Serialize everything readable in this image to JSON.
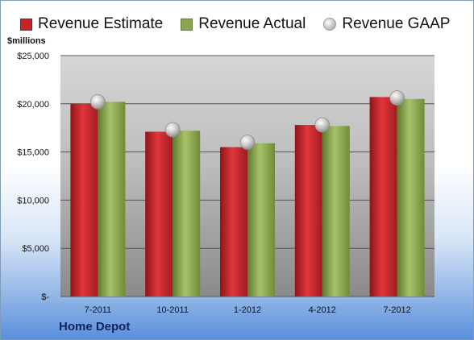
{
  "unit_label": "$millions",
  "company": "Home Depot",
  "legend": [
    {
      "label": "Revenue Estimate",
      "color": "#c0262c",
      "marker": "square"
    },
    {
      "label": "Revenue Actual",
      "color": "#89a54e",
      "marker": "square"
    },
    {
      "label": "Revenue GAAP",
      "color": "#b8b8b8",
      "marker": "circle"
    }
  ],
  "colors": {
    "estimate": "#c0262c",
    "actual": "#89a54e",
    "gaap": "#c4c4c4",
    "plot_top": "#d6d6d6",
    "plot_bottom": "#8a8a8a"
  },
  "chart_data": {
    "type": "bar",
    "categories": [
      "7-2011",
      "10-2011",
      "1-2012",
      "4-2012",
      "7-2012"
    ],
    "series": [
      {
        "name": "Revenue Estimate",
        "values": [
          20000,
          17100,
          15500,
          17800,
          20700
        ]
      },
      {
        "name": "Revenue Actual",
        "values": [
          20200,
          17200,
          15900,
          17700,
          20500
        ]
      },
      {
        "name": "Revenue GAAP",
        "values": [
          20200,
          17300,
          16000,
          17800,
          20600
        ]
      }
    ],
    "y_ticks": [
      "$-",
      "$5,000",
      "$10,000",
      "$15,000",
      "$20,000",
      "$25,000"
    ],
    "ylim": [
      0,
      25000
    ],
    "ylabel": "$millions",
    "grid": true,
    "legend_position": "top"
  }
}
